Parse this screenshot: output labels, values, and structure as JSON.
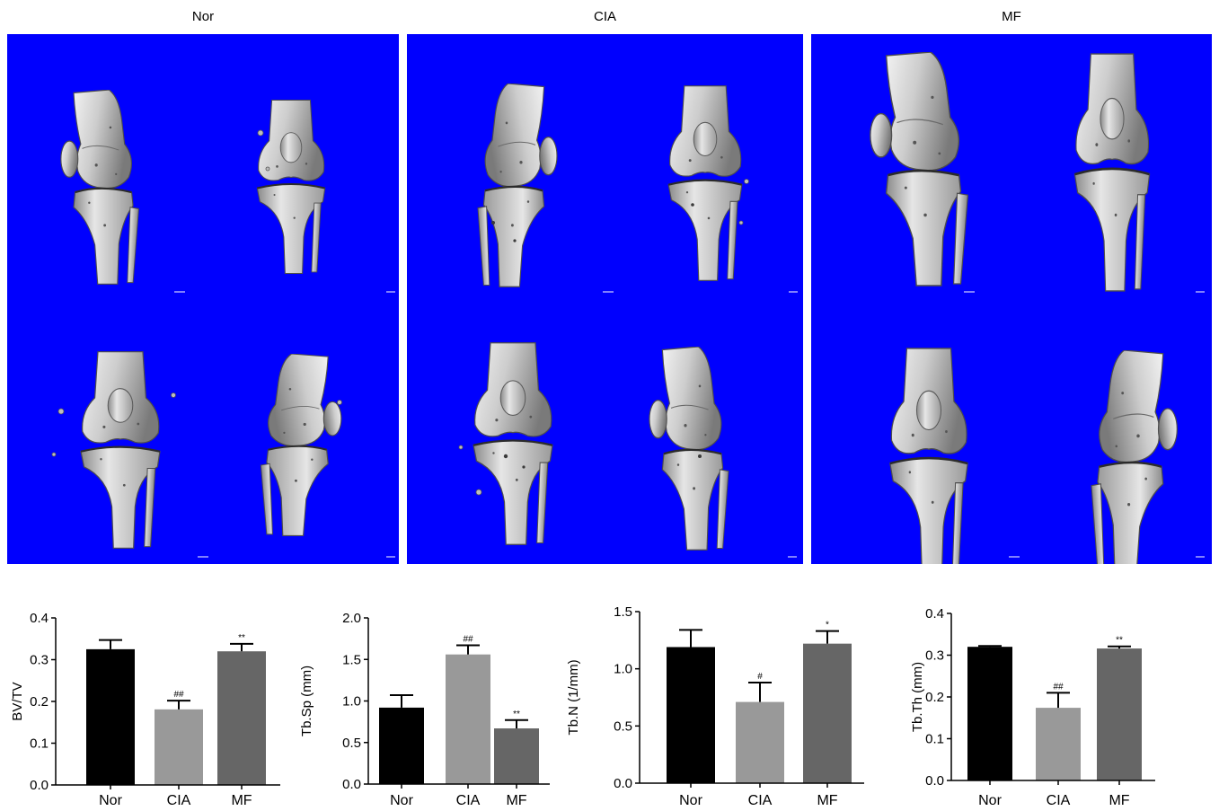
{
  "panels": [
    {
      "label": "Nor"
    },
    {
      "label": "CIA"
    },
    {
      "label": "MF"
    }
  ],
  "colors": {
    "panel_background": "#0000fe",
    "bone_light": "#efefef",
    "bone_dark": "#7a7a7a"
  },
  "chart_data": [
    {
      "type": "bar",
      "ylabel": "BV/TV",
      "categories": [
        "Nor",
        "CIA",
        "MF"
      ],
      "values": [
        0.325,
        0.181,
        0.32
      ],
      "errors": [
        0.022,
        0.021,
        0.018
      ],
      "significance": [
        "",
        "##",
        "**"
      ],
      "ylim": [
        0,
        0.4
      ],
      "yticks": [
        "0.0",
        "0.1",
        "0.2",
        "0.3",
        "0.4"
      ],
      "bar_colors": [
        "#000000",
        "#999999",
        "#666666"
      ],
      "grid": false
    },
    {
      "type": "bar",
      "ylabel": "Tb.Sp (mm)",
      "categories": [
        "Nor",
        "CIA",
        "MF"
      ],
      "values": [
        0.92,
        1.56,
        0.67
      ],
      "errors": [
        0.15,
        0.11,
        0.1
      ],
      "significance": [
        "",
        "##",
        "**"
      ],
      "ylim": [
        0,
        2.0
      ],
      "yticks": [
        "0.0",
        "0.5",
        "1.0",
        "1.5",
        "2.0"
      ],
      "bar_colors": [
        "#000000",
        "#999999",
        "#666666"
      ],
      "grid": false
    },
    {
      "type": "bar",
      "ylabel": "Tb.N (1/mm)",
      "categories": [
        "Nor",
        "CIA",
        "MF"
      ],
      "values": [
        1.19,
        0.71,
        1.22
      ],
      "errors": [
        0.15,
        0.17,
        0.11
      ],
      "significance": [
        "",
        "#",
        "*"
      ],
      "ylim": [
        0,
        1.5
      ],
      "yticks": [
        "0.0",
        "0.5",
        "1.0",
        "1.5"
      ],
      "bar_colors": [
        "#000000",
        "#999999",
        "#666666"
      ],
      "grid": false
    },
    {
      "type": "bar",
      "ylabel": "Tb.Th (mm)",
      "categories": [
        "Nor",
        "CIA",
        "MF"
      ],
      "values": [
        0.32,
        0.174,
        0.316
      ],
      "errors": [
        0.002,
        0.036,
        0.005
      ],
      "significance": [
        "",
        "##",
        "**"
      ],
      "ylim": [
        0,
        0.4
      ],
      "yticks": [
        "0.0",
        "0.1",
        "0.2",
        "0.3",
        "0.4"
      ],
      "bar_colors": [
        "#000000",
        "#999999",
        "#666666"
      ],
      "grid": false
    }
  ]
}
